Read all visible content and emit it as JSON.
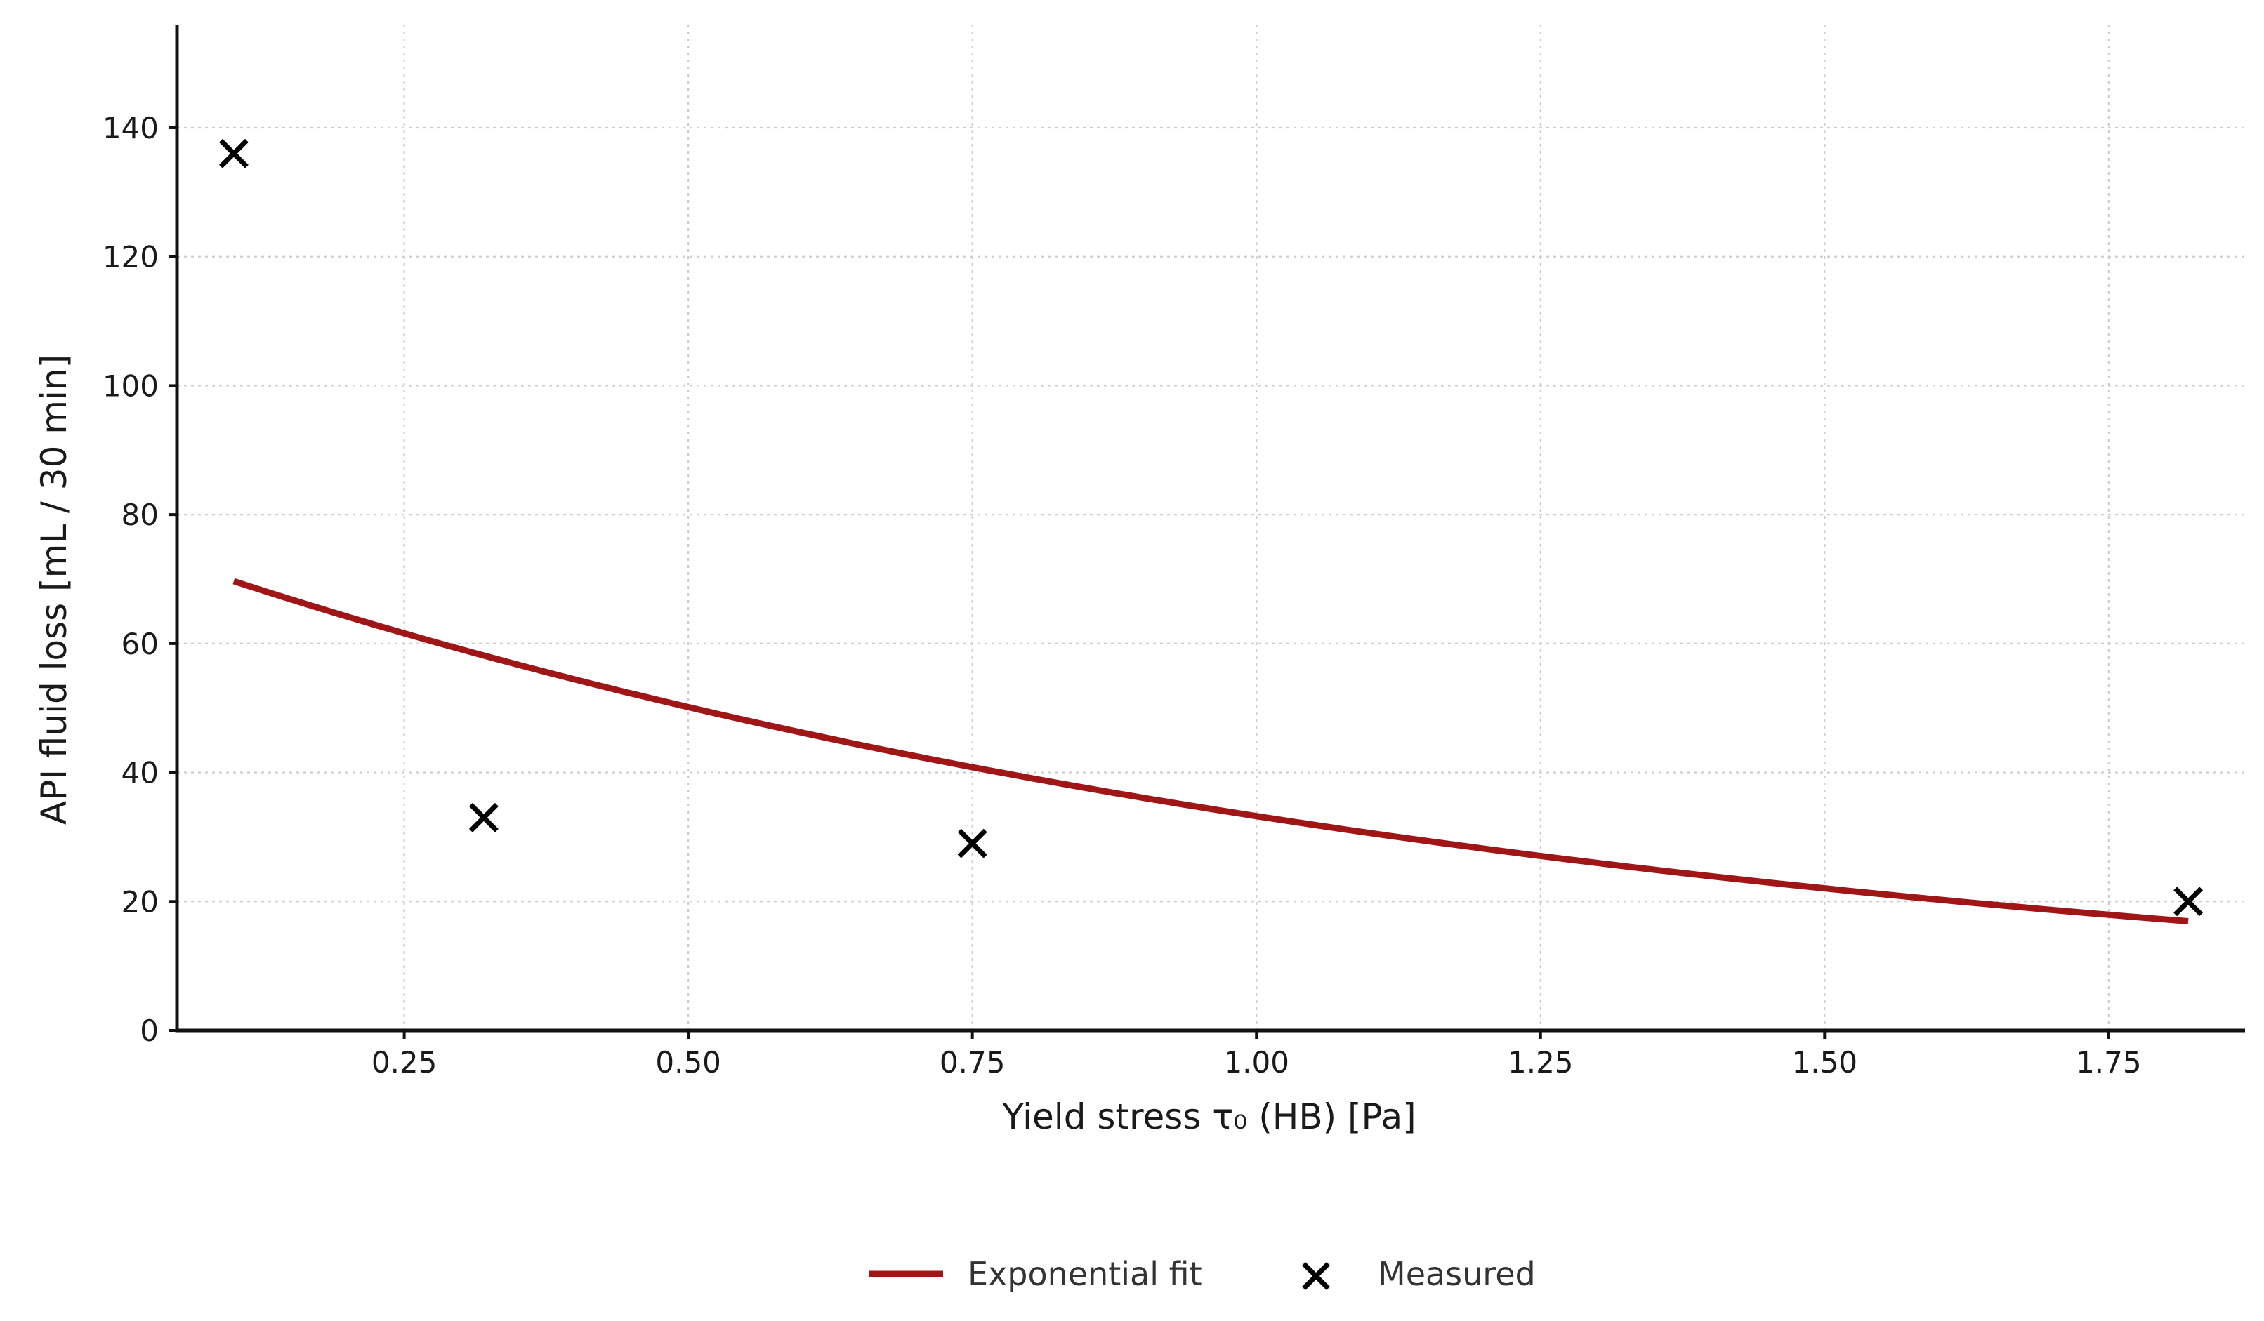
{
  "chart_data": {
    "type": "scatter",
    "title": "",
    "xlabel": "Yield stress τ₀ (HB) [Pa]",
    "ylabel": "API fluid loss [mL / 30 min]",
    "xlim": [
      0.05,
      1.87
    ],
    "ylim": [
      0,
      156
    ],
    "xticks": [
      0.25,
      0.5,
      0.75,
      1.0,
      1.25,
      1.5,
      1.75
    ],
    "xtick_labels": [
      "0.25",
      "0.50",
      "0.75",
      "1.00",
      "1.25",
      "1.50",
      "1.75"
    ],
    "yticks": [
      0,
      20,
      40,
      60,
      80,
      100,
      120,
      140
    ],
    "ytick_labels": [
      "0",
      "20",
      "40",
      "60",
      "80",
      "100",
      "120",
      "140"
    ],
    "grid": true,
    "legend_position": "bottom-center",
    "series": [
      {
        "name": "Exponential fit",
        "kind": "line",
        "color": "#a01616",
        "model": "y = a * exp(-b * x)",
        "params": {
          "a": 75.65,
          "b": 0.8225
        },
        "x_range": [
          0.1,
          1.82
        ]
      },
      {
        "name": "Measured",
        "kind": "scatter",
        "marker": "x",
        "color": "#000000",
        "x": [
          0.1,
          0.32,
          0.75,
          1.82
        ],
        "y": [
          136,
          33,
          29,
          20
        ]
      }
    ]
  }
}
